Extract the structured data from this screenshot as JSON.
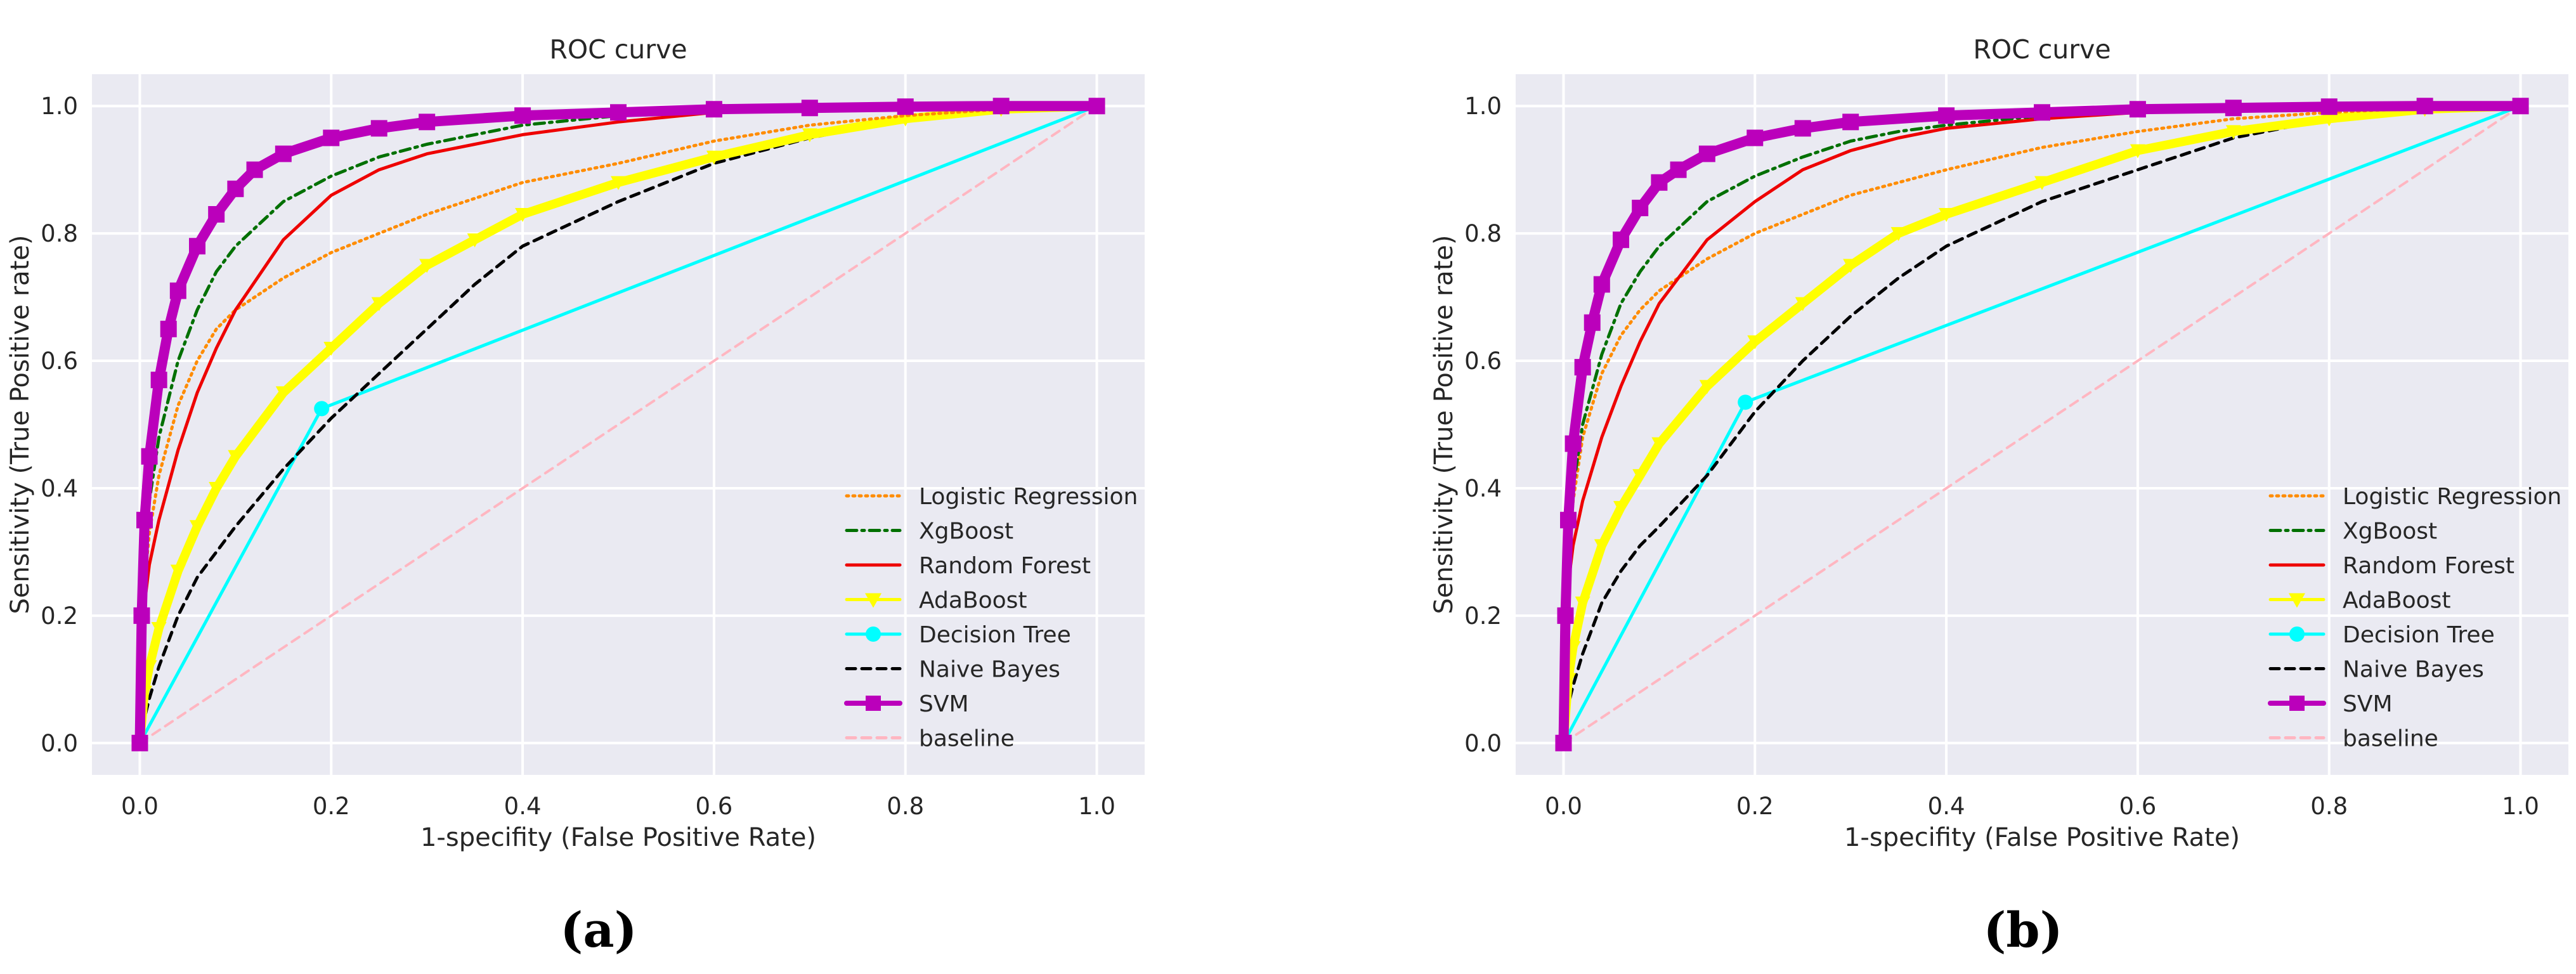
{
  "panel_labels": {
    "a": "(a)",
    "b": "(b)"
  },
  "chart_data": [
    {
      "type": "line",
      "panel": "(a)",
      "title": "ROC curve",
      "xlabel": "1-specifity (False Positive Rate)",
      "ylabel": "Sensitivity (True Positive rate)",
      "xlim": [
        -0.05,
        1.05
      ],
      "ylim": [
        -0.05,
        1.05
      ],
      "xticks": [
        0.0,
        0.2,
        0.4,
        0.6,
        0.8,
        1.0
      ],
      "yticks": [
        0.0,
        0.2,
        0.4,
        0.6,
        0.8,
        1.0
      ],
      "xtick_labels": [
        "0.0",
        "0.2",
        "0.4",
        "0.6",
        "0.8",
        "1.0"
      ],
      "ytick_labels": [
        "0.0",
        "0.2",
        "0.4",
        "0.6",
        "0.8",
        "1.0"
      ],
      "grid": true,
      "legend_position": "lower-right",
      "series": [
        {
          "name": "Logistic Regression",
          "color": "#ff8c00",
          "style": "dotted",
          "marker": "none",
          "x": [
            0,
            0.005,
            0.01,
            0.02,
            0.04,
            0.06,
            0.08,
            0.1,
            0.15,
            0.2,
            0.25,
            0.3,
            0.35,
            0.4,
            0.5,
            0.6,
            0.7,
            0.8,
            0.9,
            1.0
          ],
          "y": [
            0,
            0.25,
            0.33,
            0.42,
            0.53,
            0.6,
            0.65,
            0.68,
            0.73,
            0.77,
            0.8,
            0.83,
            0.855,
            0.88,
            0.91,
            0.945,
            0.97,
            0.985,
            0.995,
            1.0
          ]
        },
        {
          "name": "XgBoost",
          "color": "#007000",
          "style": "dashdot",
          "marker": "none",
          "x": [
            0,
            0.005,
            0.01,
            0.02,
            0.04,
            0.06,
            0.08,
            0.1,
            0.15,
            0.2,
            0.25,
            0.3,
            0.35,
            0.4,
            0.5,
            0.6,
            0.7,
            0.8,
            0.9,
            1.0
          ],
          "y": [
            0,
            0.3,
            0.38,
            0.48,
            0.6,
            0.68,
            0.74,
            0.78,
            0.85,
            0.89,
            0.92,
            0.94,
            0.955,
            0.97,
            0.985,
            0.99,
            0.995,
            1.0,
            1.0,
            1.0
          ]
        },
        {
          "name": "Random Forest",
          "color": "#ee0000",
          "style": "solid",
          "marker": "none",
          "x": [
            0,
            0.005,
            0.01,
            0.02,
            0.04,
            0.06,
            0.08,
            0.1,
            0.15,
            0.2,
            0.25,
            0.3,
            0.35,
            0.4,
            0.5,
            0.6,
            0.7,
            0.8,
            0.9,
            1.0
          ],
          "y": [
            0,
            0.22,
            0.28,
            0.35,
            0.46,
            0.55,
            0.62,
            0.68,
            0.79,
            0.86,
            0.9,
            0.925,
            0.94,
            0.955,
            0.975,
            0.99,
            0.995,
            1.0,
            1.0,
            1.0
          ]
        },
        {
          "name": "AdaBoost",
          "color": "#ffff00",
          "style": "solid",
          "marker": "triangle",
          "x": [
            0,
            0.005,
            0.01,
            0.02,
            0.04,
            0.06,
            0.08,
            0.1,
            0.15,
            0.2,
            0.25,
            0.3,
            0.35,
            0.4,
            0.5,
            0.6,
            0.7,
            0.8,
            0.9,
            1.0
          ],
          "y": [
            0,
            0.08,
            0.12,
            0.18,
            0.27,
            0.34,
            0.4,
            0.45,
            0.55,
            0.62,
            0.69,
            0.75,
            0.79,
            0.83,
            0.88,
            0.92,
            0.955,
            0.98,
            0.995,
            1.0
          ]
        },
        {
          "name": "Decision Tree",
          "color": "#00ffff",
          "style": "solid",
          "marker": "circle",
          "x": [
            0,
            0.19,
            1.0
          ],
          "y": [
            0,
            0.525,
            1.0
          ]
        },
        {
          "name": "Naive Bayes",
          "color": "#000000",
          "style": "dashed",
          "marker": "none",
          "x": [
            0,
            0.005,
            0.01,
            0.02,
            0.04,
            0.06,
            0.08,
            0.1,
            0.15,
            0.2,
            0.25,
            0.3,
            0.35,
            0.4,
            0.5,
            0.6,
            0.7,
            0.8,
            0.9,
            1.0
          ],
          "y": [
            0,
            0.04,
            0.07,
            0.12,
            0.2,
            0.26,
            0.3,
            0.34,
            0.43,
            0.51,
            0.58,
            0.65,
            0.72,
            0.78,
            0.85,
            0.91,
            0.95,
            0.98,
            0.995,
            1.0
          ]
        },
        {
          "name": "SVM",
          "color": "#bb00bb",
          "style": "solid",
          "marker": "square",
          "x": [
            0,
            0.002,
            0.005,
            0.01,
            0.02,
            0.03,
            0.04,
            0.06,
            0.08,
            0.1,
            0.12,
            0.15,
            0.2,
            0.25,
            0.3,
            0.4,
            0.5,
            0.6,
            0.7,
            0.8,
            0.9,
            1.0
          ],
          "y": [
            0,
            0.2,
            0.35,
            0.45,
            0.57,
            0.65,
            0.71,
            0.78,
            0.83,
            0.87,
            0.9,
            0.925,
            0.95,
            0.965,
            0.975,
            0.985,
            0.99,
            0.995,
            0.997,
            0.999,
            1.0,
            1.0
          ]
        },
        {
          "name": "baseline",
          "color": "#ffb6c1",
          "style": "dashed",
          "marker": "none",
          "x": [
            0,
            1.0
          ],
          "y": [
            0,
            1.0
          ]
        }
      ]
    },
    {
      "type": "line",
      "panel": "(b)",
      "title": "ROC curve",
      "xlabel": "1-specifity (False Positive Rate)",
      "ylabel": "Sensitivity (True Positive rate)",
      "xlim": [
        -0.05,
        1.05
      ],
      "ylim": [
        -0.05,
        1.05
      ],
      "xticks": [
        0.0,
        0.2,
        0.4,
        0.6,
        0.8,
        1.0
      ],
      "yticks": [
        0.0,
        0.2,
        0.4,
        0.6,
        0.8,
        1.0
      ],
      "xtick_labels": [
        "0.0",
        "0.2",
        "0.4",
        "0.6",
        "0.8",
        "1.0"
      ],
      "ytick_labels": [
        "0.0",
        "0.2",
        "0.4",
        "0.6",
        "0.8",
        "1.0"
      ],
      "grid": true,
      "legend_position": "lower-right",
      "series": [
        {
          "name": "Logistic Regression",
          "color": "#ff8c00",
          "style": "dotted",
          "marker": "none",
          "x": [
            0,
            0.005,
            0.01,
            0.02,
            0.04,
            0.06,
            0.08,
            0.1,
            0.15,
            0.2,
            0.25,
            0.3,
            0.35,
            0.4,
            0.5,
            0.6,
            0.7,
            0.8,
            0.9,
            1.0
          ],
          "y": [
            0,
            0.3,
            0.38,
            0.48,
            0.58,
            0.64,
            0.68,
            0.71,
            0.76,
            0.8,
            0.83,
            0.86,
            0.88,
            0.9,
            0.935,
            0.96,
            0.98,
            0.99,
            0.997,
            1.0
          ]
        },
        {
          "name": "XgBoost",
          "color": "#007000",
          "style": "dashdot",
          "marker": "none",
          "x": [
            0,
            0.005,
            0.01,
            0.02,
            0.04,
            0.06,
            0.08,
            0.1,
            0.15,
            0.2,
            0.25,
            0.3,
            0.35,
            0.4,
            0.5,
            0.6,
            0.7,
            0.8,
            0.9,
            1.0
          ],
          "y": [
            0,
            0.32,
            0.4,
            0.5,
            0.61,
            0.69,
            0.74,
            0.78,
            0.85,
            0.89,
            0.92,
            0.945,
            0.96,
            0.97,
            0.985,
            0.99,
            0.995,
            1.0,
            1.0,
            1.0
          ]
        },
        {
          "name": "Random Forest",
          "color": "#ee0000",
          "style": "solid",
          "marker": "none",
          "x": [
            0,
            0.005,
            0.01,
            0.02,
            0.04,
            0.06,
            0.08,
            0.1,
            0.15,
            0.2,
            0.25,
            0.3,
            0.35,
            0.4,
            0.5,
            0.6,
            0.7,
            0.8,
            0.9,
            1.0
          ],
          "y": [
            0,
            0.25,
            0.31,
            0.38,
            0.48,
            0.56,
            0.63,
            0.69,
            0.79,
            0.85,
            0.9,
            0.93,
            0.95,
            0.965,
            0.98,
            0.99,
            0.995,
            1.0,
            1.0,
            1.0
          ]
        },
        {
          "name": "AdaBoost",
          "color": "#ffff00",
          "style": "solid",
          "marker": "triangle",
          "x": [
            0,
            0.005,
            0.01,
            0.02,
            0.04,
            0.06,
            0.08,
            0.1,
            0.15,
            0.2,
            0.25,
            0.3,
            0.35,
            0.4,
            0.5,
            0.6,
            0.7,
            0.8,
            0.9,
            1.0
          ],
          "y": [
            0,
            0.1,
            0.15,
            0.22,
            0.31,
            0.37,
            0.42,
            0.47,
            0.56,
            0.63,
            0.69,
            0.75,
            0.8,
            0.83,
            0.88,
            0.93,
            0.96,
            0.98,
            0.995,
            1.0
          ]
        },
        {
          "name": "Decision Tree",
          "color": "#00ffff",
          "style": "solid",
          "marker": "circle",
          "x": [
            0,
            0.19,
            1.0
          ],
          "y": [
            0,
            0.535,
            1.0
          ]
        },
        {
          "name": "Naive Bayes",
          "color": "#000000",
          "style": "dashed",
          "marker": "none",
          "x": [
            0,
            0.005,
            0.01,
            0.02,
            0.04,
            0.06,
            0.08,
            0.1,
            0.15,
            0.2,
            0.25,
            0.3,
            0.35,
            0.4,
            0.5,
            0.6,
            0.7,
            0.8,
            0.9,
            1.0
          ],
          "y": [
            0,
            0.06,
            0.09,
            0.14,
            0.22,
            0.27,
            0.31,
            0.34,
            0.42,
            0.52,
            0.6,
            0.67,
            0.73,
            0.78,
            0.85,
            0.9,
            0.95,
            0.98,
            0.995,
            1.0
          ]
        },
        {
          "name": "SVM",
          "color": "#bb00bb",
          "style": "solid",
          "marker": "square",
          "x": [
            0,
            0.002,
            0.005,
            0.01,
            0.02,
            0.03,
            0.04,
            0.06,
            0.08,
            0.1,
            0.12,
            0.15,
            0.2,
            0.25,
            0.3,
            0.4,
            0.5,
            0.6,
            0.7,
            0.8,
            0.9,
            1.0
          ],
          "y": [
            0,
            0.2,
            0.35,
            0.47,
            0.59,
            0.66,
            0.72,
            0.79,
            0.84,
            0.88,
            0.9,
            0.925,
            0.95,
            0.965,
            0.975,
            0.985,
            0.99,
            0.995,
            0.997,
            0.999,
            1.0,
            1.0
          ]
        },
        {
          "name": "baseline",
          "color": "#ffb6c1",
          "style": "dashed",
          "marker": "none",
          "x": [
            0,
            1.0
          ],
          "y": [
            0,
            1.0
          ]
        }
      ]
    }
  ]
}
